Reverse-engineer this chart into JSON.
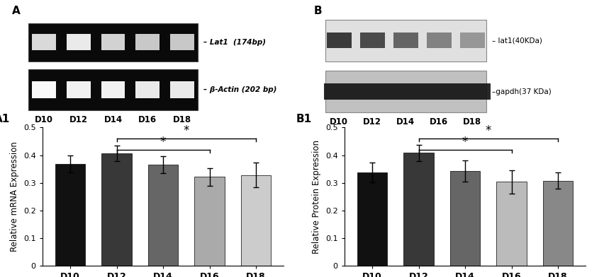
{
  "categories": [
    "D10",
    "D12",
    "D14",
    "D16",
    "D18"
  ],
  "mRNA_values": [
    0.368,
    0.406,
    0.365,
    0.322,
    0.328
  ],
  "mRNA_errors": [
    0.03,
    0.028,
    0.03,
    0.032,
    0.045
  ],
  "protein_values": [
    0.338,
    0.408,
    0.342,
    0.304,
    0.308
  ],
  "protein_errors": [
    0.035,
    0.03,
    0.038,
    0.042,
    0.03
  ],
  "bar_colors_mRNA": [
    "#111111",
    "#383838",
    "#666666",
    "#aaaaaa",
    "#cccccc"
  ],
  "bar_colors_protein": [
    "#111111",
    "#383838",
    "#666666",
    "#bbbbbb",
    "#888888"
  ],
  "ylabel_mRNA": "Relative mRNA Expression",
  "ylabel_protein": "Relative Protein Expression",
  "label_A1": "A1",
  "label_B1": "B1",
  "ylim": [
    0,
    0.5
  ],
  "yticks": [
    0,
    0.1,
    0.2,
    0.3,
    0.4,
    0.5
  ],
  "day_labels": [
    "D10",
    "D12",
    "D14",
    "D16",
    "D18"
  ],
  "gel_A_label_top": "– Lat1  (174bp)",
  "gel_A_label_bot": "– β-Actin (202 bp)",
  "wb_B_label_top": "– lat1(40KDa)",
  "wb_B_label_bot": "–gapdh(37 KDa)",
  "panel_A": "A",
  "panel_B": "B"
}
